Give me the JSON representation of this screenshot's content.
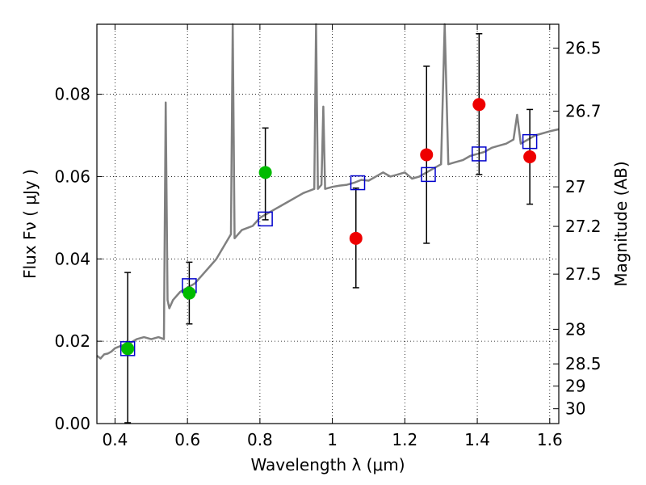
{
  "chart_data": {
    "type": "scatter",
    "xlabel": "Wavelength  λ (μm)",
    "ylabel": "Flux  Fν  ( μJy )",
    "y2label": "Magnitude (AB)",
    "xlim": [
      0.35,
      1.625
    ],
    "ylim": [
      0.0,
      0.097
    ],
    "grid": true,
    "x_ticks": [
      0.4,
      0.6,
      0.8,
      1.0,
      1.2,
      1.4,
      1.6
    ],
    "x_tick_labels": [
      "0.4",
      "0.6",
      "0.8",
      "1",
      "1.2",
      "1.4",
      "1.6"
    ],
    "y_ticks": [
      0.0,
      0.02,
      0.04,
      0.06,
      0.08
    ],
    "y_tick_labels": [
      "0.00",
      "0.02",
      "0.04",
      "0.06",
      "0.08"
    ],
    "right_axis_ticks": [
      {
        "label": "26.5",
        "flux": 0.0912
      },
      {
        "label": "26.7",
        "flux": 0.0759
      },
      {
        "label": "27",
        "flux": 0.0575
      },
      {
        "label": "27.2",
        "flux": 0.0479
      },
      {
        "label": "27.5",
        "flux": 0.0363
      },
      {
        "label": "28",
        "flux": 0.0229
      },
      {
        "label": "28.5",
        "flux": 0.0145
      },
      {
        "label": "29",
        "flux": 0.0091
      },
      {
        "label": "30",
        "flux": 0.0036
      }
    ],
    "series": [
      {
        "kind": "line",
        "color": "#808080",
        "x": [
          0.35,
          0.36,
          0.37,
          0.38,
          0.39,
          0.4,
          0.42,
          0.44,
          0.46,
          0.48,
          0.5,
          0.52,
          0.535,
          0.54,
          0.545,
          0.55,
          0.56,
          0.58,
          0.6,
          0.62,
          0.64,
          0.66,
          0.68,
          0.7,
          0.72,
          0.725,
          0.73,
          0.75,
          0.78,
          0.8,
          0.82,
          0.84,
          0.86,
          0.88,
          0.9,
          0.92,
          0.95,
          0.955,
          0.96,
          0.97,
          0.975,
          0.98,
          1.0,
          1.02,
          1.04,
          1.06,
          1.08,
          1.1,
          1.12,
          1.14,
          1.16,
          1.18,
          1.2,
          1.22,
          1.24,
          1.26,
          1.28,
          1.3,
          1.31,
          1.32,
          1.34,
          1.36,
          1.38,
          1.4,
          1.42,
          1.44,
          1.46,
          1.48,
          1.5,
          1.51,
          1.52,
          1.54,
          1.56,
          1.58,
          1.6,
          1.625
        ],
        "y": [
          0.0165,
          0.0158,
          0.0168,
          0.017,
          0.0175,
          0.0183,
          0.019,
          0.0195,
          0.0205,
          0.021,
          0.0205,
          0.021,
          0.0205,
          0.078,
          0.03,
          0.028,
          0.03,
          0.032,
          0.033,
          0.034,
          0.036,
          0.038,
          0.04,
          0.043,
          0.046,
          0.097,
          0.045,
          0.047,
          0.048,
          0.05,
          0.051,
          0.052,
          0.053,
          0.054,
          0.055,
          0.056,
          0.057,
          0.097,
          0.057,
          0.058,
          0.077,
          0.057,
          0.0575,
          0.0578,
          0.058,
          0.0585,
          0.0592,
          0.059,
          0.06,
          0.061,
          0.06,
          0.0605,
          0.061,
          0.0595,
          0.06,
          0.061,
          0.062,
          0.063,
          0.097,
          0.063,
          0.0635,
          0.064,
          0.065,
          0.0655,
          0.066,
          0.067,
          0.0675,
          0.068,
          0.069,
          0.075,
          0.068,
          0.069,
          0.07,
          0.0705,
          0.071,
          0.0715
        ]
      },
      {
        "kind": "points",
        "marker": "square",
        "color": "#0000cc",
        "x": [
          0.435,
          0.605,
          0.815,
          1.07,
          1.265,
          1.405,
          1.545
        ],
        "y": [
          0.0182,
          0.0335,
          0.0497,
          0.0585,
          0.0605,
          0.0655,
          0.0685
        ]
      },
      {
        "kind": "points",
        "marker": "circle",
        "color": "#00bb00",
        "x": [
          0.435,
          0.605,
          0.815
        ],
        "y": [
          0.0182,
          0.0317,
          0.061
        ],
        "yerr_low": [
          0.018,
          0.0075,
          0.0115
        ],
        "yerr_high": [
          0.0185,
          0.0075,
          0.0108
        ]
      },
      {
        "kind": "points",
        "marker": "circle",
        "color": "#ee0000",
        "x": [
          1.065,
          1.26,
          1.405,
          1.545
        ],
        "y": [
          0.045,
          0.0653,
          0.0775,
          0.0648
        ],
        "yerr_low": [
          0.012,
          0.0215,
          0.017,
          0.0115
        ],
        "yerr_high": [
          0.0122,
          0.0215,
          0.0172,
          0.0115
        ]
      }
    ]
  }
}
